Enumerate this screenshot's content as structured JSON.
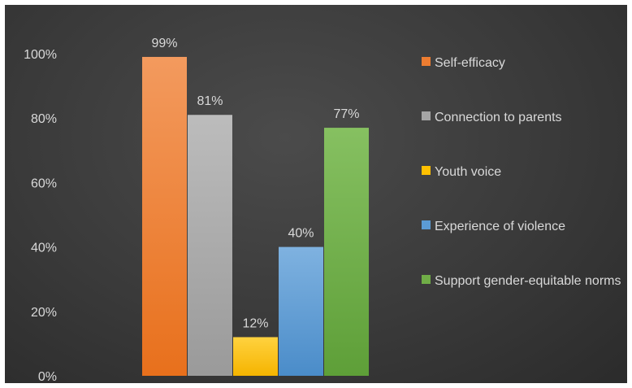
{
  "chart_data": {
    "type": "bar",
    "title": "",
    "xlabel": "",
    "ylabel": "",
    "ylim": [
      0,
      100
    ],
    "yticks": [
      "0%",
      "20%",
      "40%",
      "60%",
      "80%",
      "100%"
    ],
    "grid": false,
    "legend_position": "right",
    "series": [
      {
        "name": "Self-efficacy",
        "value": 99,
        "label": "99%",
        "color": "#ed7d31"
      },
      {
        "name": "Connection to parents",
        "value": 81,
        "label": "81%",
        "color": "#a5a5a5"
      },
      {
        "name": "Youth voice",
        "value": 12,
        "label": "12%",
        "color": "#ffc000"
      },
      {
        "name": "Experience of violence",
        "value": 40,
        "label": "40%",
        "color": "#5b9bd5"
      },
      {
        "name": "Support gender-equitable norms",
        "value": 77,
        "label": "77%",
        "color": "#70ad47"
      }
    ]
  }
}
